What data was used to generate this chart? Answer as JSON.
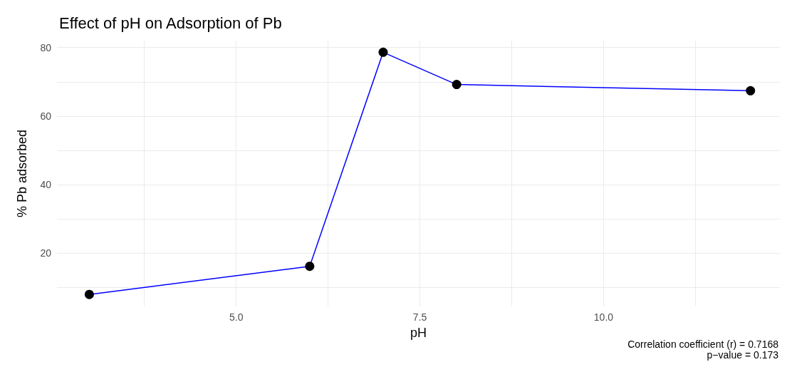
{
  "chart_data": {
    "type": "line",
    "title": "Effect of pH on Adsorption of Pb",
    "xlabel": "pH",
    "ylabel": "% Pb adsorbed",
    "x": [
      3,
      6,
      7,
      8,
      12
    ],
    "series": [
      {
        "color": "#0000ff",
        "values": [
          8.0,
          16.2,
          78.6,
          69.2,
          67.4
        ]
      }
    ],
    "marker": "circle",
    "line_style": "solid",
    "xlim": [
      2.56,
      12.4
    ],
    "xticks": [
      {
        "value": 3.75,
        "label": null
      },
      {
        "value": 5,
        "label": "5.0"
      },
      {
        "value": 6.25,
        "label": null
      },
      7.5,
      {
        "value": 8.75,
        "label": null
      },
      {
        "value": 10,
        "label": "10.0"
      },
      {
        "value": 11.25,
        "label": null
      }
    ],
    "ylim": [
      4.5,
      82
    ],
    "yticks": [
      {
        "value": 10,
        "label": null
      },
      20,
      {
        "value": 30,
        "label": null
      },
      40,
      {
        "value": 50,
        "label": null
      },
      60,
      {
        "value": 70,
        "label": null
      },
      80
    ],
    "grid": true,
    "annotations": [
      "Correlation coefficient (r) = 0.7168",
      "p−value = 0.173"
    ]
  }
}
